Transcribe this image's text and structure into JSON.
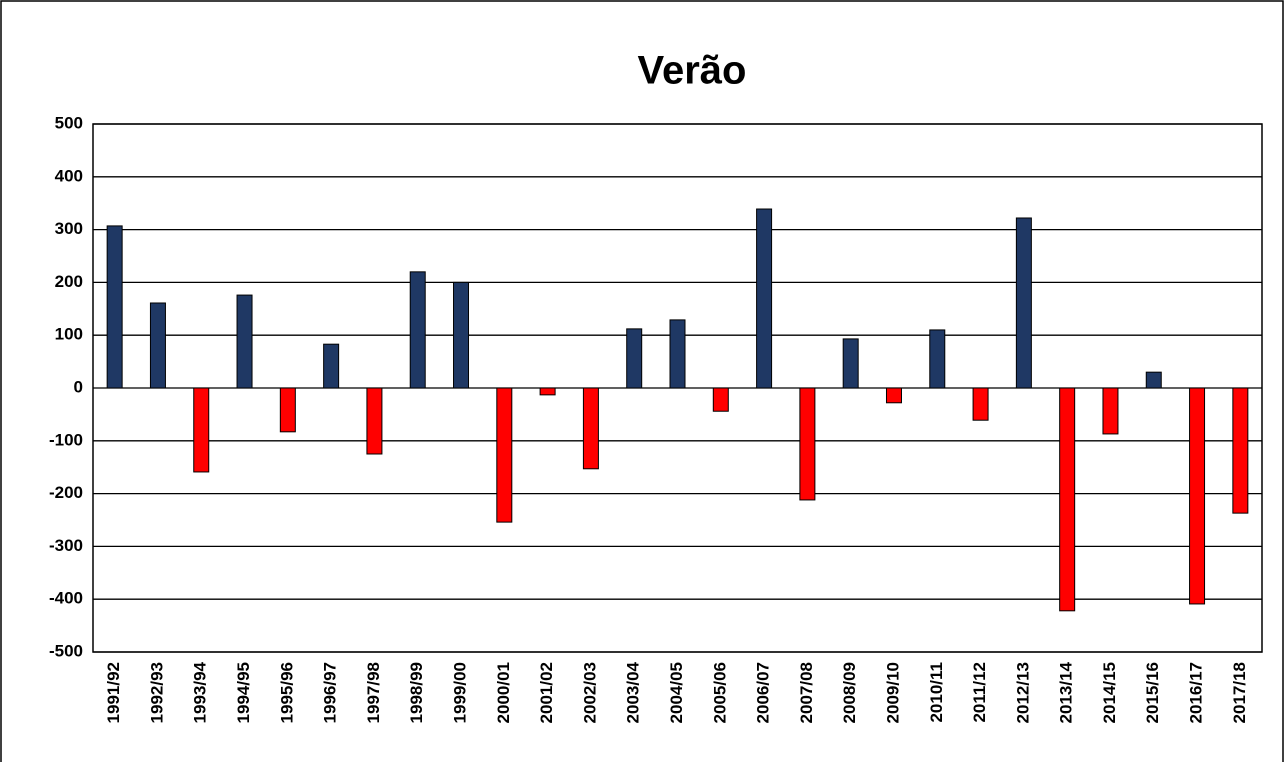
{
  "chart_data": {
    "type": "bar",
    "title": "Verão",
    "categories": [
      "1991/92",
      "1992/93",
      "1993/94",
      "1994/95",
      "1995/96",
      "1996/97",
      "1997/98",
      "1998/99",
      "1999/00",
      "2000/01",
      "2001/02",
      "2002/03",
      "2003/04",
      "2004/05",
      "2005/06",
      "2006/07",
      "2007/08",
      "2008/09",
      "2009/10",
      "2010/11",
      "2011/12",
      "2012/13",
      "2013/14",
      "2014/15",
      "2015/16",
      "2016/17",
      "2017/18"
    ],
    "values": [
      307,
      161,
      -159,
      176,
      -83,
      83,
      -125,
      220,
      200,
      -254,
      -13,
      -153,
      112,
      129,
      -44,
      339,
      -212,
      93,
      -28,
      110,
      -61,
      322,
      -422,
      -87,
      30,
      -409,
      -237
    ],
    "color": "#1f3864",
    "negative_color": "#ff0000",
    "ylim": [
      -500,
      500
    ],
    "yticks": [
      -500,
      -400,
      -300,
      -200,
      -100,
      0,
      100,
      200,
      300,
      400,
      500
    ],
    "grid": true
  }
}
